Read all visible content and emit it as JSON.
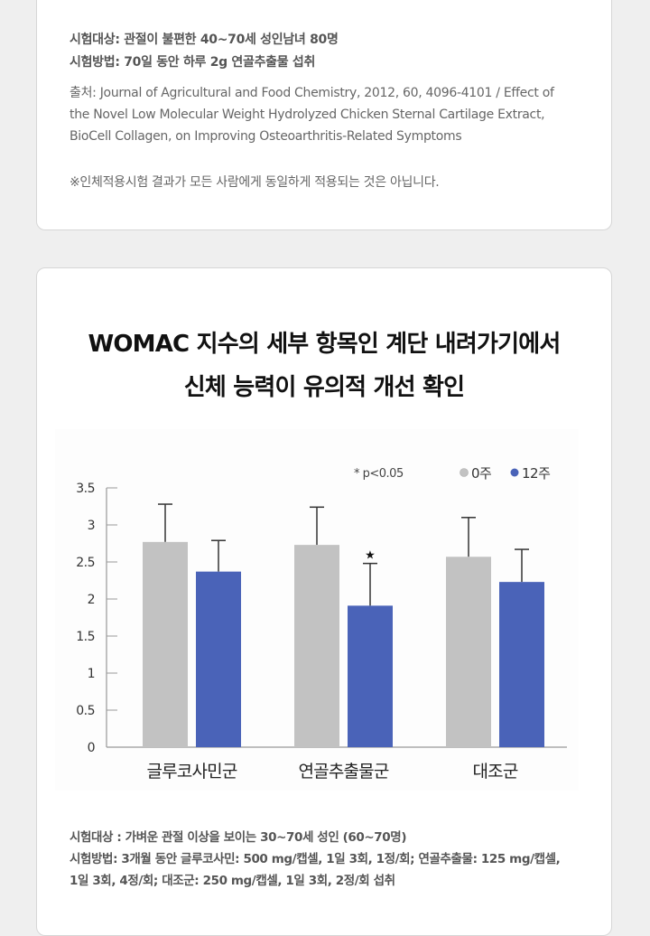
{
  "card1": {
    "subject": "시험대상: 관절이 불편한 40~70세 성인남녀 80명",
    "method": "시험방법: 70일 동안 하루 2g 연골추출물 섭취",
    "source_line1": "출처: Journal of Agricultural and Food Chemistry, 2012, 60, 4096-4101 / Effect of",
    "source_line2": "the Novel Low Molecular Weight Hydrolyzed Chicken Sternal Cartilage Extract,",
    "source_line3": "BioCell Collagen, on Improving Osteoarthritis-Related Symptoms",
    "disclaimer": "※인체적용시험 결과가 모든 사람에게 동일하게 적용되는 것은 아닙니다."
  },
  "card2": {
    "title_line1": "WOMAC 지수의 세부 항목인 계단 내려가기에서",
    "title_line2": "신체 능력이 유의적 개선 확인",
    "subject": "시험대상 : 가벼운 관절 이상을 보이는 30~70세 성인 (60~70명)",
    "method_line1": "시험방법: 3개월 동안 글루코사민: 500 mg/캡셀, 1일 3회, 1정/회; 연골추출물: 125 mg/캡셀,",
    "method_line2": "1일 3회, 4정/회; 대조군: 250 mg/캡셀, 1일 3회, 2정/회 섭취"
  },
  "chart_data": {
    "type": "bar",
    "title": "WOMAC 지수의 세부 항목인 계단 내려가기에서 신체 능력이 유의적 개선 확인",
    "categories": [
      "글루코사민군",
      "연골추출물군",
      "대조군"
    ],
    "series": [
      {
        "name": "0주",
        "color": "#c2c2c2",
        "values": [
          2.77,
          2.73,
          2.57
        ],
        "error_upper": [
          3.28,
          3.24,
          3.1
        ]
      },
      {
        "name": "12주",
        "color": "#4a63b8",
        "values": [
          2.37,
          1.91,
          2.23
        ],
        "error_upper": [
          2.79,
          2.48,
          2.67
        ]
      }
    ],
    "significance": {
      "category": "연골추출물군",
      "series": "12주",
      "marker": "★"
    },
    "annotation": "* p<0.05",
    "yticks": [
      "0",
      "0.5",
      "1",
      "1.5",
      "2",
      "2.5",
      "3",
      "3.5"
    ],
    "ylim": [
      0,
      3.5
    ],
    "xlabel": "",
    "ylabel": "",
    "legend_position": "top-right",
    "grid": false
  }
}
